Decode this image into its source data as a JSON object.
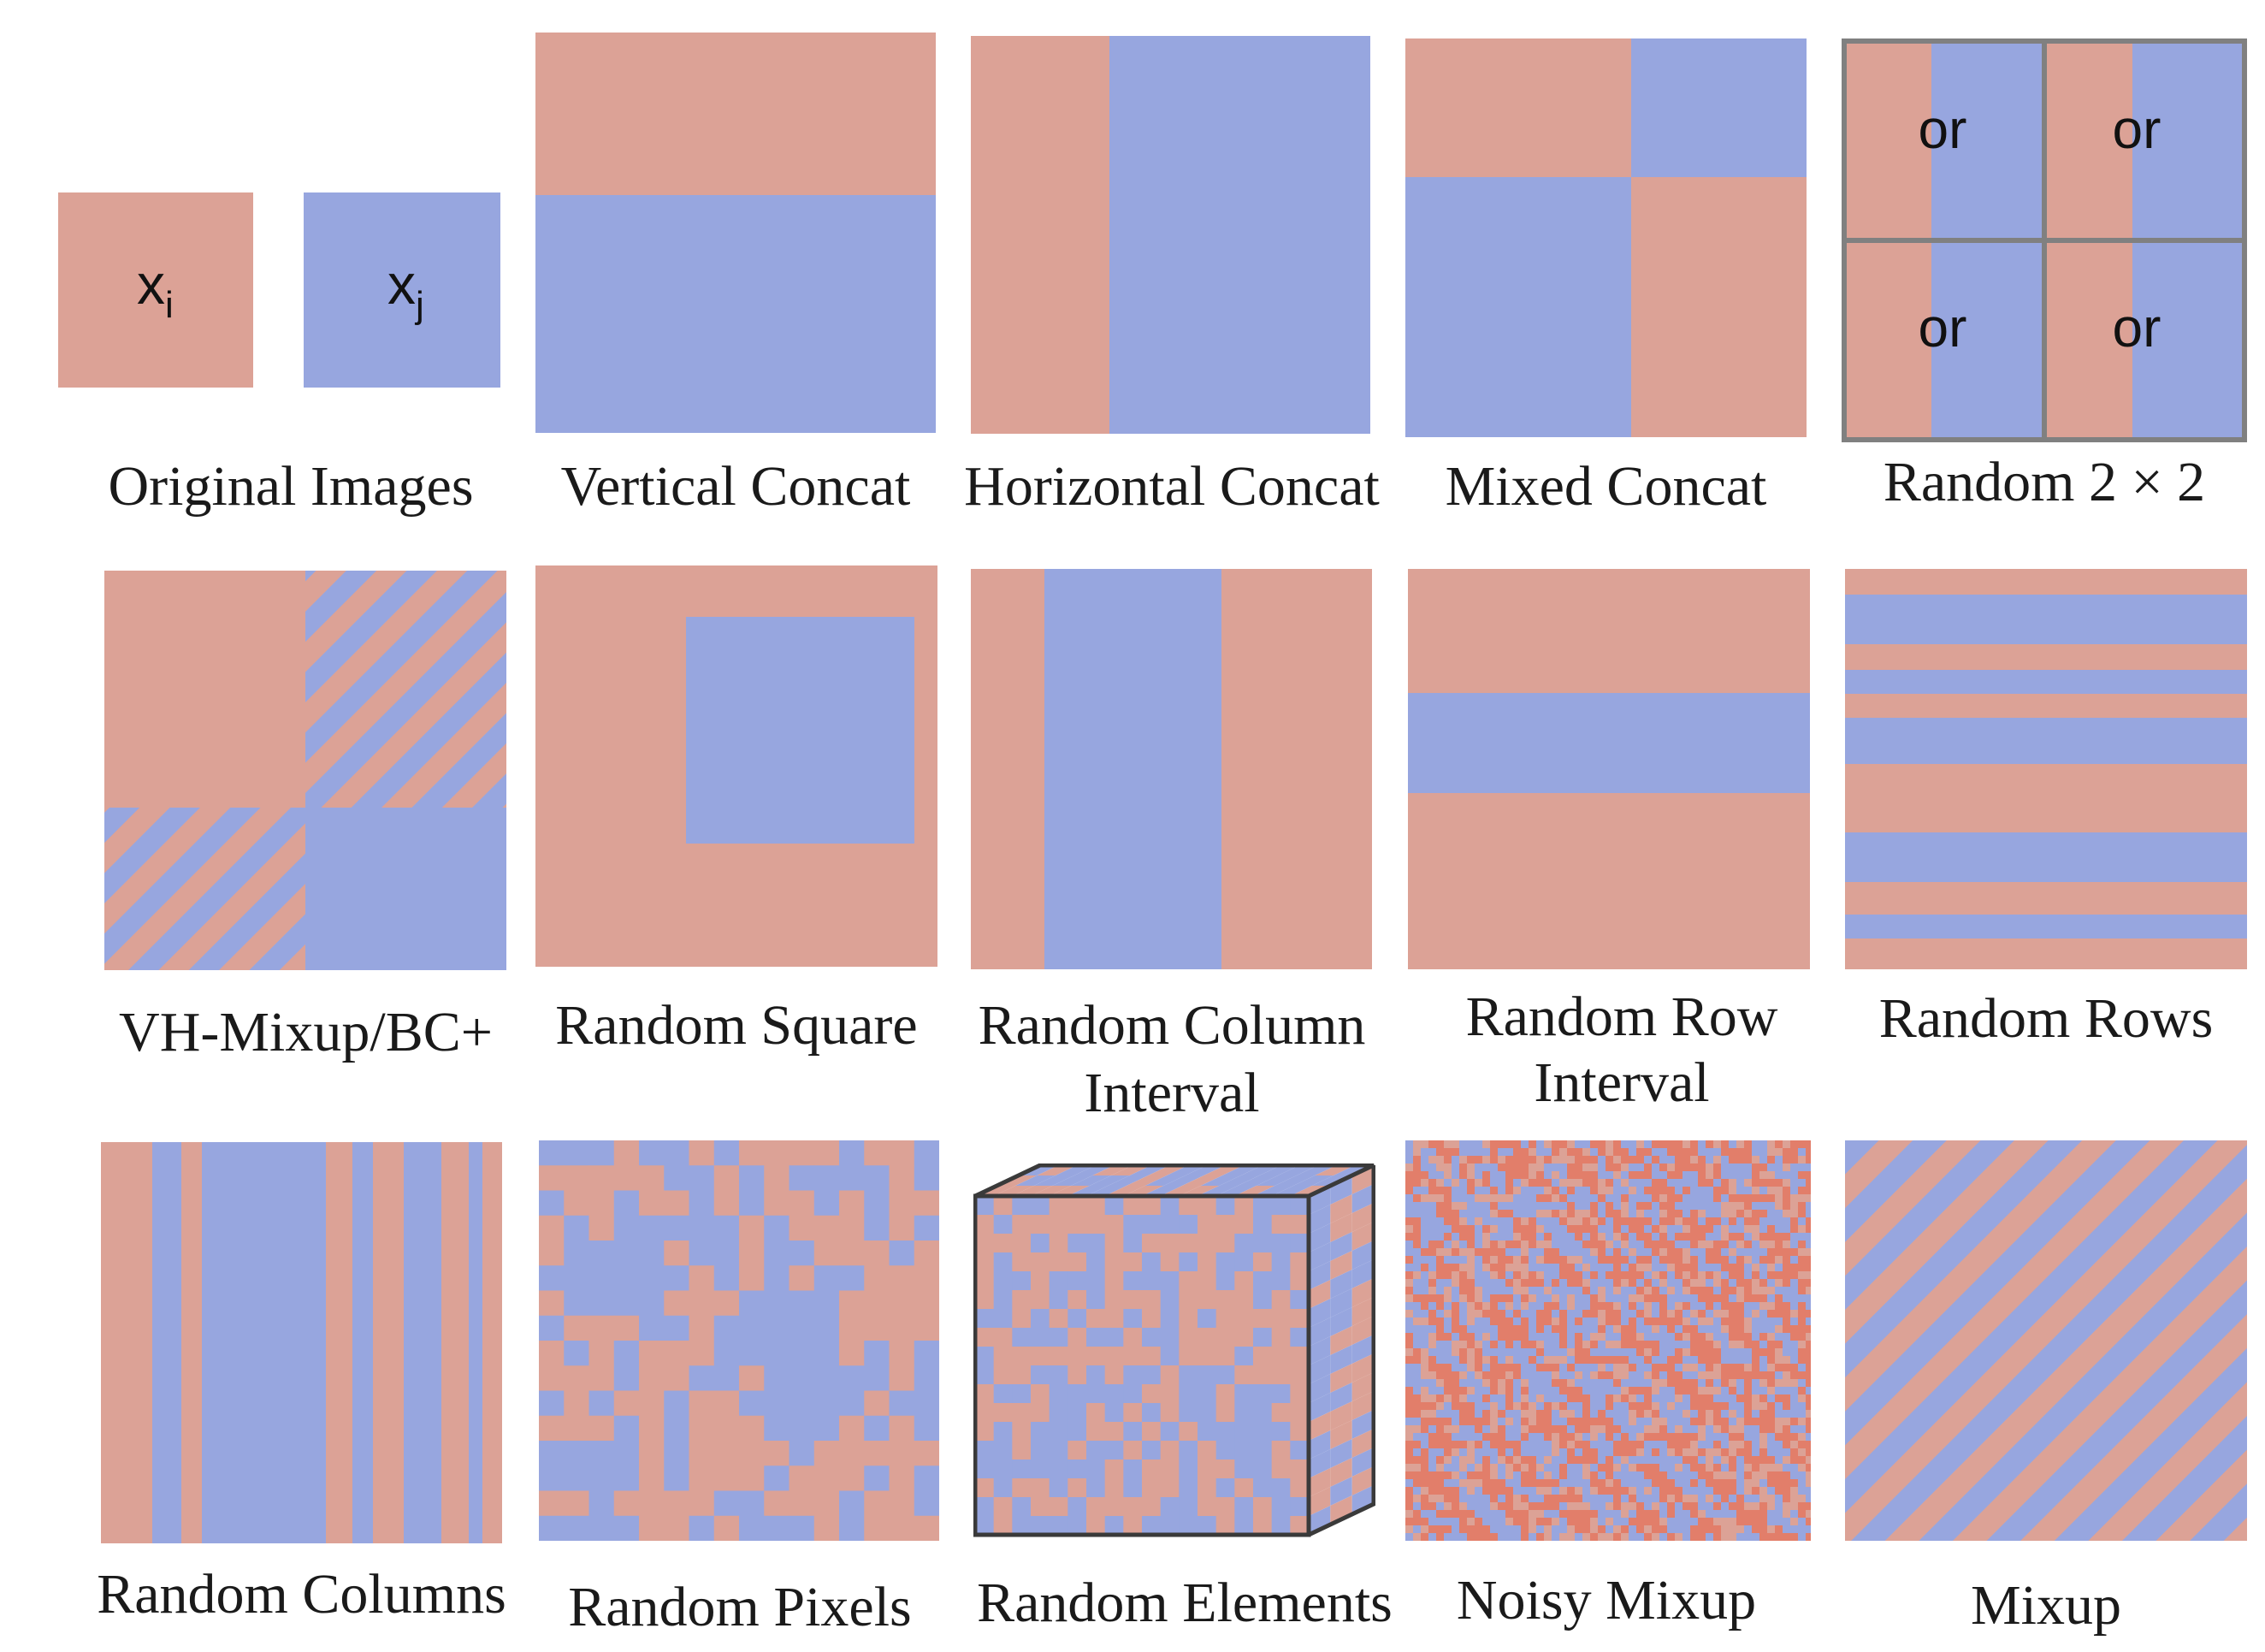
{
  "colors": {
    "image_i": "#dca296",
    "image_j": "#97a6df",
    "grid_border": "#808080",
    "cube_edge": "#3a3a3a",
    "noise_dark": "#e27e6a"
  },
  "original_images": {
    "xi_symbol": "x",
    "xi_sub": "i",
    "xj_symbol": "x",
    "xj_sub": "j",
    "label": "Original Images"
  },
  "vertical_concat": {
    "label": "Vertical Concat"
  },
  "horizontal_concat": {
    "label": "Horizontal Concat"
  },
  "mixed_concat": {
    "label": "Mixed Concat"
  },
  "random_2x2": {
    "label": "Random 2 × 2",
    "cell_text": "or"
  },
  "vh_mixup": {
    "label": "VH-Mixup/BC+"
  },
  "random_square": {
    "label": "Random Square"
  },
  "random_column_interval": {
    "label_line1": "Random Column",
    "label_line2": "Interval"
  },
  "random_row_interval": {
    "label_line1": "Random Row",
    "label_line2": "Interval"
  },
  "random_rows": {
    "label": "Random Rows"
  },
  "random_columns": {
    "label": "Random Columns"
  },
  "random_pixels": {
    "label": "Random Pixels"
  },
  "random_elements": {
    "label": "Random Elements"
  },
  "noisy_mixup": {
    "label": "Noisy Mixup"
  },
  "mixup": {
    "label": "Mixup"
  }
}
